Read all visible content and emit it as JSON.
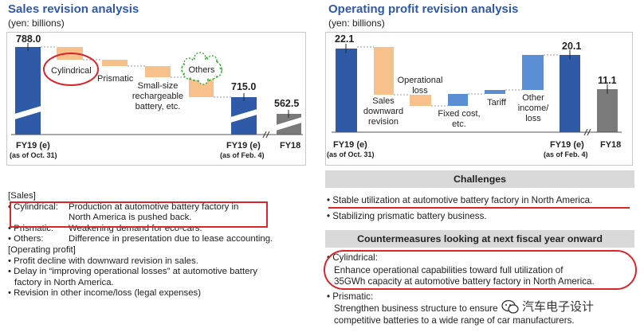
{
  "colors": {
    "blue": "#2f5aa8",
    "orange": "#f8c08a",
    "lightblue": "#5b8fd4",
    "gray": "#7a7a7a",
    "red": "#d9262b",
    "green": "#3aaa35"
  },
  "sales": {
    "title": "Sales revision analysis",
    "unit": "(yen: billions)",
    "bar1_label": "FY19 (e)",
    "bar1_sub": "(as of Oct. 31)",
    "bar2_label": "FY19 (e)",
    "bar2_sub": "(as of Feb. 4)",
    "bar3_label": "FY18",
    "items": {
      "cylindrical": "Cylindrical",
      "prismatic": "Prismatic",
      "small1": "Small-size",
      "small2": "rechargeable",
      "small3": "battery, etc.",
      "others": "Others"
    }
  },
  "op": {
    "title": "Operating profit revision analysis",
    "unit": "(yen: billions)",
    "bar1_label": "FY19 (e)",
    "bar1_sub": "(as of Oct. 31)",
    "bar2_label": "FY19 (e)",
    "bar2_sub": "(as of Feb. 4)",
    "bar3_label": "FY18",
    "items": {
      "sales1": "Sales",
      "sales2": "downward",
      "sales3": "revision",
      "oploss1": "Operational",
      "oploss2": "loss",
      "fixed1": "Fixed cost,",
      "fixed2": "etc.",
      "tariff": "Tariff",
      "other1": "Other",
      "other2": "income/",
      "other3": "loss"
    }
  },
  "chart_data": [
    {
      "type": "bar",
      "title": "Sales revision analysis",
      "ylabel": "(yen: billions)",
      "categories": [
        "FY19 (e) (as of Oct. 31)",
        "Cylindrical",
        "Prismatic",
        "Small-size rechargeable battery, etc.",
        "Others",
        "FY19 (e) (as of Feb. 4)",
        "FY18"
      ],
      "values": [
        788.0,
        null,
        null,
        null,
        null,
        715.0,
        562.5
      ],
      "value_labels": [
        "788.0",
        "",
        "",
        "",
        "",
        "715.0",
        "562.5"
      ]
    },
    {
      "type": "bar",
      "title": "Operating profit revision analysis",
      "ylabel": "(yen: billions)",
      "categories": [
        "FY19 (e) (as of Oct. 31)",
        "Sales downward revision",
        "Operational loss",
        "Fixed cost, etc.",
        "Tariff",
        "Other income/loss",
        "FY19 (e) (as of Feb. 4)",
        "FY18"
      ],
      "values": [
        22.1,
        null,
        null,
        null,
        null,
        null,
        20.1,
        11.1
      ],
      "value_labels": [
        "22.1",
        "",
        "",
        "",
        "",
        "",
        "20.1",
        "11.1"
      ]
    }
  ],
  "notes": {
    "sales_head": "[Sales]",
    "cyl_label": "• Cylindrical:",
    "cyl_text1": "Production at automotive battery factory in",
    "cyl_text2": "North America is pushed back.",
    "pri_label": "• Prismatic:",
    "pri_text": "Weakening demand for eco-cars.",
    "oth_label": "• Others:",
    "oth_text": "Difference in presentation due to lease accounting.",
    "op_head": "[Operating profit]",
    "op1": "• Profit decline with downward revision in sales.",
    "op2a": "• Delay in “improving operational losses” at automotive battery",
    "op2b": "  factory in North America.",
    "op3": "• Revision in other income/loss (legal expenses)"
  },
  "challenges": {
    "header": "Challenges",
    "c1": "• Stable utilization at automotive battery factory in North America.",
    "c2": "• Stabilizing prismatic battery business."
  },
  "counter": {
    "header": "Countermeasures looking at next fiscal year onward",
    "cyl": "• Cylindrical:",
    "cyl1": "Enhance operational capabilities toward full utilization of",
    "cyl2": "35GWh capacity at automotive battery factory in North America.",
    "pri": "• Prismatic:",
    "pri1": "Strengthen business structure to ensure",
    "pri2": "competitive batteries to a wide range of car manufacturers."
  },
  "watermark": "汽车电子设计"
}
